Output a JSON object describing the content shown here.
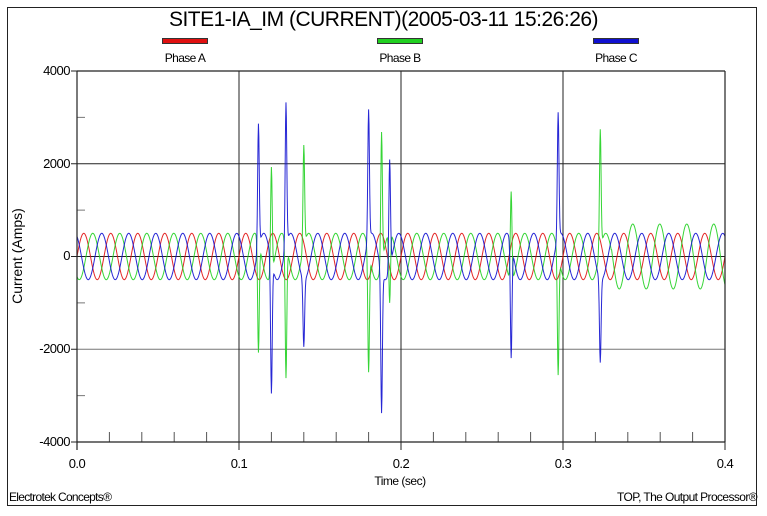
{
  "chart_data": {
    "type": "line",
    "title": "SITE1-IA_IM (CURRENT)(2005-03-11 15:26:26)",
    "xlabel": "Time (sec)",
    "ylabel": "Current (Amps)",
    "xlim": [
      0.0,
      0.4
    ],
    "ylim": [
      -4000,
      4000
    ],
    "x_ticks": [
      0.0,
      0.1,
      0.2,
      0.3,
      0.4
    ],
    "x_tick_labels": [
      "0.0",
      "0.1",
      "0.2",
      "0.3",
      "0.4"
    ],
    "y_ticks": [
      4000,
      2000,
      0,
      -2000,
      -4000
    ],
    "y_tick_labels": [
      "4000",
      "2000",
      "0",
      "-2000",
      "-4000"
    ],
    "grid": true,
    "legend_position": "top",
    "frequency_hz": 60,
    "nominal_amplitude_amps": 500,
    "series": [
      {
        "name": "Phase A",
        "color": "#e01010",
        "phase_deg": 0,
        "amplitude_amps": 500,
        "description": "steady ~500 A sinusoid throughout"
      },
      {
        "name": "Phase B",
        "color": "#20d020",
        "phase_deg": -120,
        "amplitude_amps": 500,
        "late_amplitude_amps": 700,
        "late_amplitude_from_sec": 0.33,
        "spikes": [
          {
            "t": 0.112,
            "peak": -2400
          },
          {
            "t": 0.12,
            "peak": 2300
          },
          {
            "t": 0.129,
            "peak": -2900
          },
          {
            "t": 0.14,
            "peak": 2200
          },
          {
            "t": 0.18,
            "peak": -2600
          },
          {
            "t": 0.188,
            "peak": 2850
          },
          {
            "t": 0.193,
            "peak": -1500
          },
          {
            "t": 0.268,
            "peak": 1900
          },
          {
            "t": 0.297,
            "peak": -2600
          },
          {
            "t": 0.323,
            "peak": 2600
          }
        ]
      },
      {
        "name": "Phase C",
        "color": "#1010d0",
        "phase_deg": 120,
        "amplitude_amps": 500,
        "spikes": [
          {
            "t": 0.112,
            "peak": 2700
          },
          {
            "t": 0.12,
            "peak": -2850
          },
          {
            "t": 0.129,
            "peak": 3100
          },
          {
            "t": 0.14,
            "peak": -1450
          },
          {
            "t": 0.18,
            "peak": 2800
          },
          {
            "t": 0.188,
            "peak": -3050
          },
          {
            "t": 0.193,
            "peak": 2350
          },
          {
            "t": 0.268,
            "peak": -2450
          },
          {
            "t": 0.297,
            "peak": 2700
          },
          {
            "t": 0.323,
            "peak": -1800
          }
        ]
      }
    ]
  },
  "legend": [
    {
      "label": "Phase A",
      "color": "#e01010"
    },
    {
      "label": "Phase B",
      "color": "#20d020"
    },
    {
      "label": "Phase C",
      "color": "#1010d0"
    }
  ],
  "footer": {
    "left": "Electrotek Concepts®",
    "right": "TOP, The Output Processor®"
  }
}
